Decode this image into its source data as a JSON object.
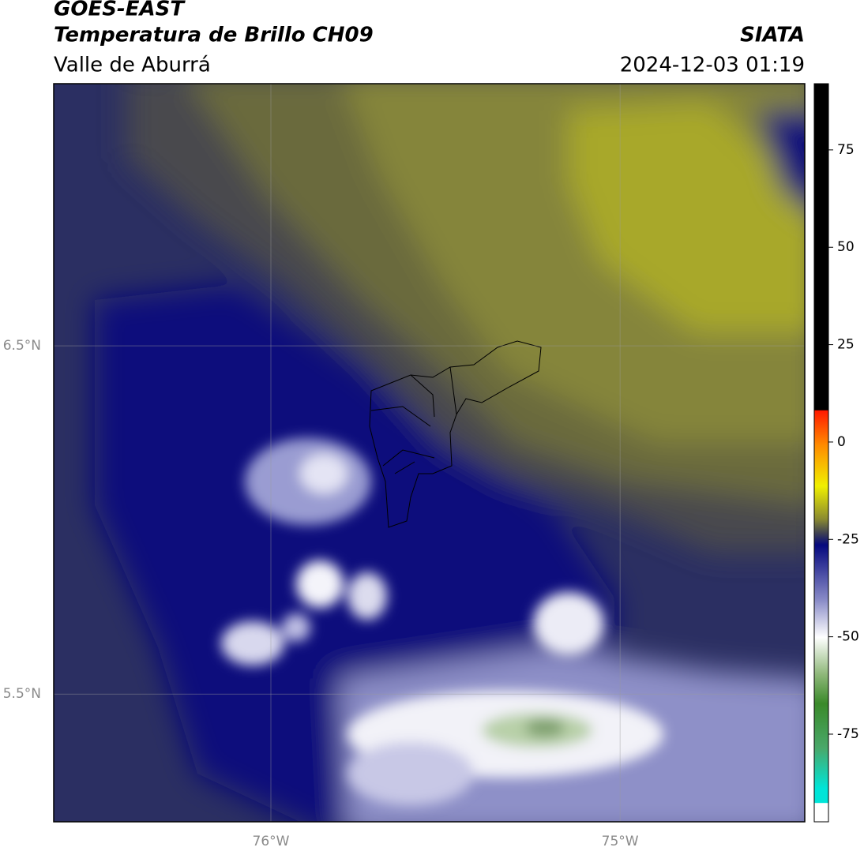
{
  "header": {
    "title": "GOES-EAST",
    "subtitle": "Temperatura de Brillo CH09",
    "agency": "SIATA",
    "region": "Valle de Aburrá",
    "timestamp": "2024-12-03 01:19"
  },
  "map": {
    "lat_range": [
      5.133,
      7.253
    ],
    "lon_range": [
      -76.622,
      -74.471
    ],
    "lat_ticks": [
      {
        "value": 6.5,
        "label": "6.5°N"
      },
      {
        "value": 5.5,
        "label": "5.5°N"
      }
    ],
    "lon_ticks": [
      {
        "value": -76,
        "label": "76°W"
      },
      {
        "value": -75,
        "label": "75°W"
      }
    ]
  },
  "colorbar": {
    "range": [
      -97.5,
      92
    ],
    "ticks": [
      75,
      50,
      25,
      0,
      -25,
      -50,
      -75
    ]
  }
}
